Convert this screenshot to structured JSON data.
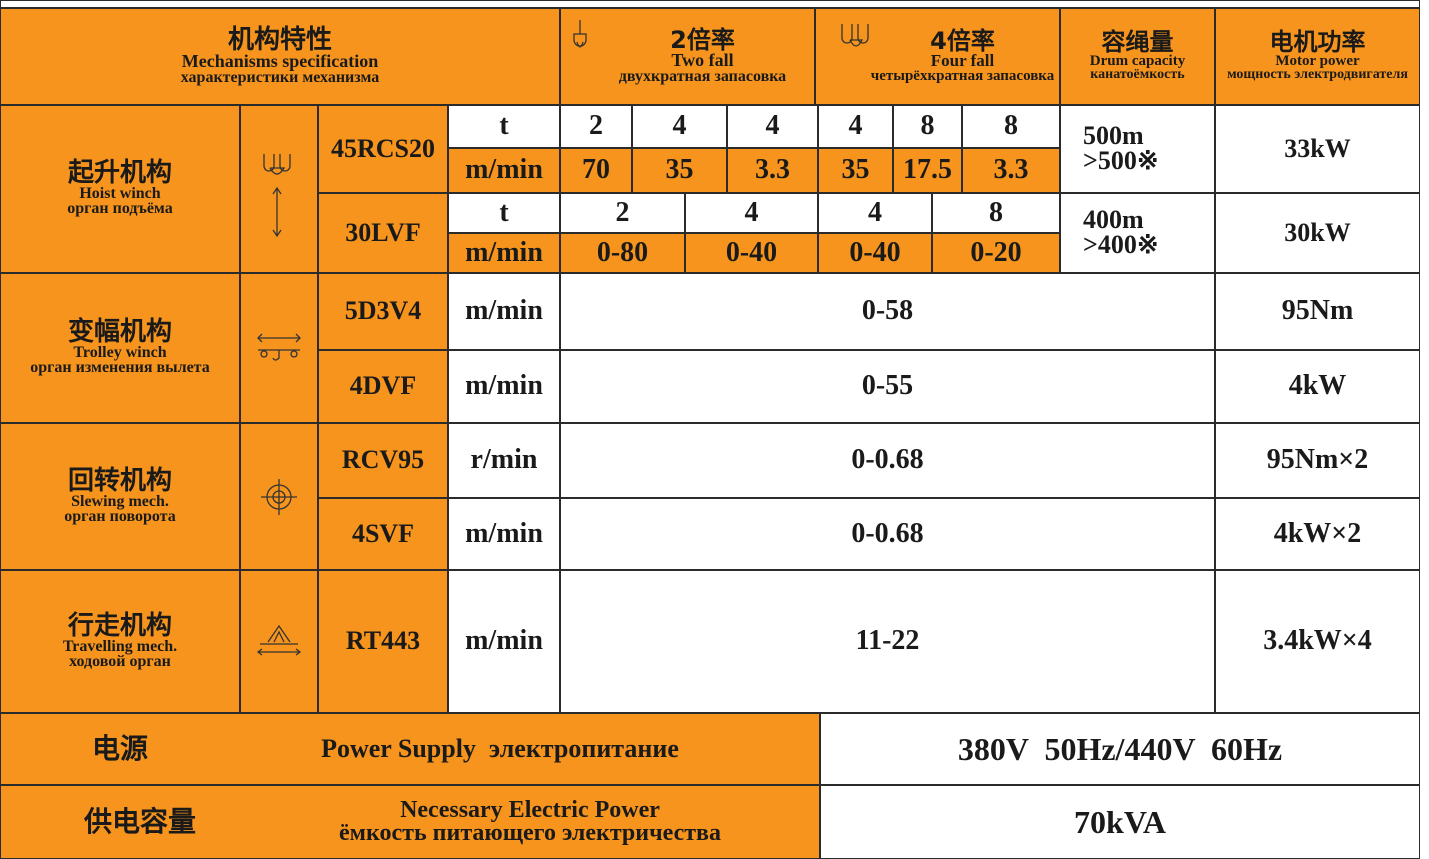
{
  "header": {
    "mechanism": {
      "cn": "机构特性",
      "en": "Mechanisms specification",
      "ru": "характеристики механизма"
    },
    "two_fall": {
      "cn": "2倍率",
      "en": "Two fall",
      "ru": "двухкратная запасовка"
    },
    "four_fall": {
      "cn": "4倍率",
      "en": "Four fall",
      "ru": "четырёхкратная запасовка"
    },
    "drum": {
      "cn": "容绳量",
      "en": "Drum capacity",
      "ru": "канатоёмкость"
    },
    "motor": {
      "cn": "电机功率",
      "en": "Motor power",
      "ru": "мощность электродвигателя"
    }
  },
  "hoist": {
    "name": {
      "cn": "起升机构",
      "en": "Hoist winch",
      "ru": "орган подъёма"
    },
    "models": [
      {
        "model": "45RCS20",
        "units": [
          "t",
          "m/min"
        ],
        "loads": [
          "2",
          "4",
          "4",
          "4",
          "8",
          "8"
        ],
        "speeds": [
          "70",
          "35",
          "3.3",
          "35",
          "17.5",
          "3.3"
        ],
        "drum": [
          "500m",
          ">500※"
        ],
        "power": "33kW"
      },
      {
        "model": "30LVF",
        "units": [
          "t",
          "m/min"
        ],
        "loads": [
          "2",
          "4",
          "4",
          "8"
        ],
        "speeds": [
          "0-80",
          "0-40",
          "0-40",
          "0-20"
        ],
        "drum": [
          "400m",
          ">400※"
        ],
        "power": "30kW"
      }
    ]
  },
  "trolley": {
    "name": {
      "cn": "变幅机构",
      "en": "Trolley winch",
      "ru": "орган изменения вылета"
    },
    "models": [
      {
        "model": "5D3V4",
        "unit": "m/min",
        "value": "0-58",
        "power": "95Nm"
      },
      {
        "model": "4DVF",
        "unit": "m/min",
        "value": "0-55",
        "power": "4kW"
      }
    ]
  },
  "slewing": {
    "name": {
      "cn": "回转机构",
      "en": "Slewing mech.",
      "ru": "орган поворота"
    },
    "models": [
      {
        "model": "RCV95",
        "unit": "r/min",
        "value": "0-0.68",
        "power": "95Nm×2"
      },
      {
        "model": "4SVF",
        "unit": "m/min",
        "value": "0-0.68",
        "power": "4kW×2"
      }
    ]
  },
  "travelling": {
    "name": {
      "cn": "行走机构",
      "en": "Travelling mech.",
      "ru": "ходовой орган"
    },
    "models": [
      {
        "model": "RT443",
        "unit": "m/min",
        "value": "11-22",
        "power": "3.4kW×4"
      }
    ]
  },
  "power_supply": {
    "cn": "电源",
    "label": "Power Supply  электропитание",
    "value": "380V  50Hz/440V  60Hz"
  },
  "electric_power": {
    "cn": "供电容量",
    "en": "Necessary Electric Power",
    "ru": "ёмкость питающего электричества",
    "value": "70kVA"
  }
}
